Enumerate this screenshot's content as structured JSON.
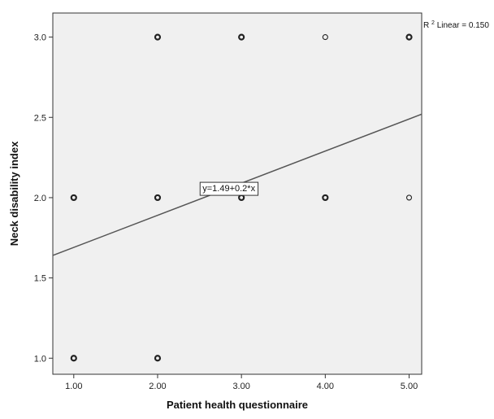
{
  "chart_data": {
    "type": "scatter",
    "title": "",
    "xlabel": "Patient health questionnaire",
    "ylabel": "Neck disability index",
    "xlim": [
      0.75,
      5.15
    ],
    "ylim": [
      0.9,
      3.15
    ],
    "x_ticks": [
      1.0,
      2.0,
      3.0,
      4.0,
      5.0
    ],
    "x_tick_labels": [
      "1.00",
      "2.00",
      "3.00",
      "4.00",
      "5.00"
    ],
    "y_ticks": [
      1.0,
      1.5,
      2.0,
      2.5,
      3.0
    ],
    "y_tick_labels": [
      "1.0",
      "1.5",
      "2.0",
      "2.5",
      "3.0"
    ],
    "grid": false,
    "background_color": "#f0f0f0",
    "marker_color": "#222222",
    "points": [
      {
        "x": 1,
        "y": 1,
        "multiple": true
      },
      {
        "x": 1,
        "y": 2,
        "multiple": true
      },
      {
        "x": 2,
        "y": 1,
        "multiple": true
      },
      {
        "x": 2,
        "y": 2,
        "multiple": true
      },
      {
        "x": 2,
        "y": 3,
        "multiple": true
      },
      {
        "x": 3,
        "y": 2,
        "multiple": true
      },
      {
        "x": 3,
        "y": 3,
        "multiple": true
      },
      {
        "x": 4,
        "y": 2,
        "multiple": true
      },
      {
        "x": 4,
        "y": 3,
        "multiple": false
      },
      {
        "x": 5,
        "y": 2,
        "multiple": false
      },
      {
        "x": 5,
        "y": 3,
        "multiple": true
      }
    ],
    "fit_line": {
      "intercept": 1.49,
      "slope": 0.2,
      "color": "#555555",
      "equation_label": "y=1.49+0.2*x",
      "equation_at_x": 2.85
    },
    "r2_label": {
      "prefix": "R",
      "superscript": "2",
      "suffix": " Linear = 0.150"
    }
  }
}
